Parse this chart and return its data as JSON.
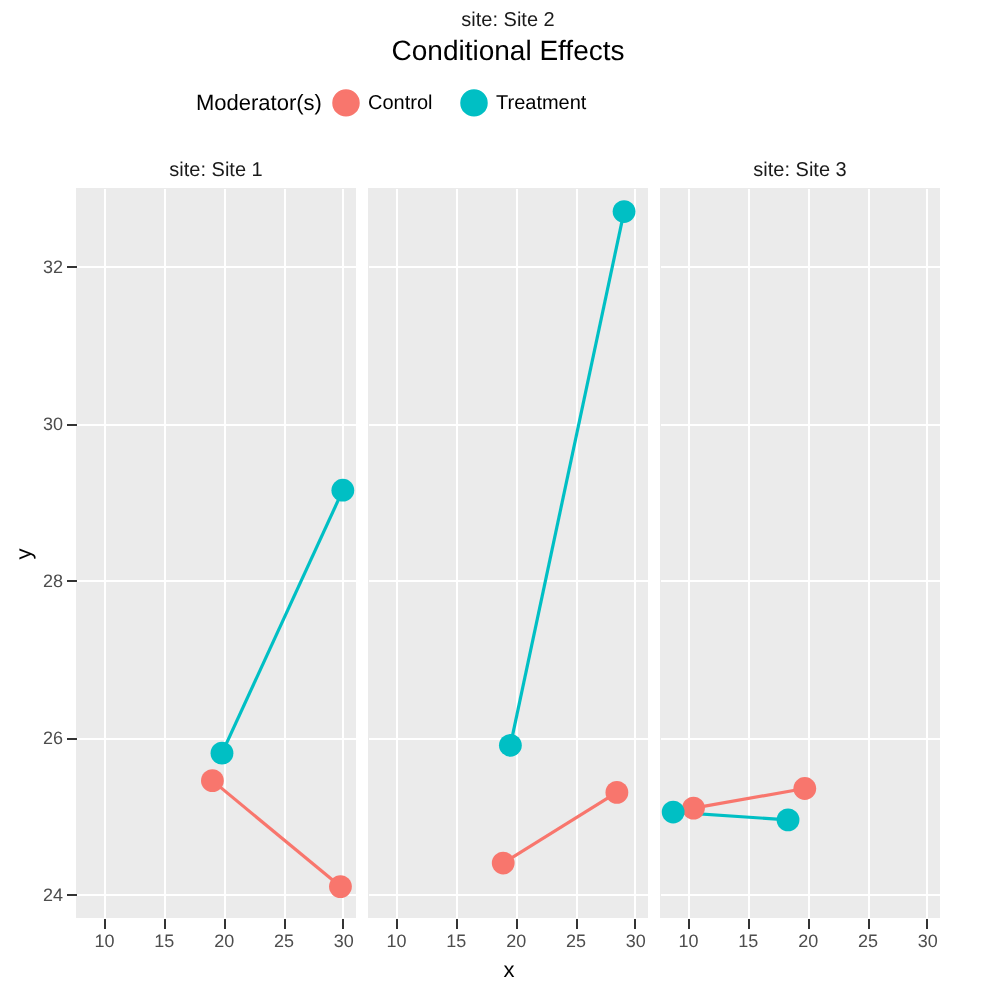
{
  "chart_data": [
    {
      "type": "line",
      "subtitle": "site: Site 1",
      "ylabel": "y",
      "legend_title": "Moderator(s)",
      "legend": "top",
      "grid": true,
      "marker": "circle",
      "line_style": "solid",
      "xlim": [
        7.7,
        31.1
      ],
      "xticks": [
        10,
        15,
        20,
        25,
        30
      ],
      "ylim": [
        23.7,
        33.0
      ],
      "yticks": [
        24,
        26,
        28,
        30,
        32
      ],
      "series": [
        {
          "name": "Control",
          "color": "#f8766d",
          "x": [
            19.1,
            29.8
          ],
          "values": [
            25.45,
            24.1
          ]
        },
        {
          "name": "Treatment",
          "color": "#00bfc4",
          "x": [
            19.9,
            30.0
          ],
          "values": [
            25.8,
            29.15
          ]
        }
      ]
    },
    {
      "type": "line",
      "title": "Conditional Effects",
      "subtitle": "site: Site 2",
      "xlabel": "x",
      "grid": true,
      "marker": "circle",
      "line_style": "solid",
      "tick_labels": "x",
      "xlim": [
        7.7,
        31.1
      ],
      "xticks": [
        10,
        15,
        20,
        25,
        30
      ],
      "ylim": [
        23.7,
        33.0
      ],
      "yticks": [
        24,
        26,
        28,
        30,
        32
      ],
      "series": [
        {
          "name": "Control",
          "color": "#f8766d",
          "x": [
            19.0,
            28.5
          ],
          "values": [
            24.4,
            25.3
          ]
        },
        {
          "name": "Treatment",
          "color": "#00bfc4",
          "x": [
            19.6,
            29.1
          ],
          "values": [
            25.9,
            32.7
          ]
        }
      ]
    },
    {
      "type": "line",
      "subtitle": "site: Site 3",
      "grid": true,
      "marker": "circle",
      "line_style": "solid",
      "tick_labels": "x",
      "xlim": [
        7.7,
        31.1
      ],
      "xticks": [
        10,
        15,
        20,
        25,
        30
      ],
      "ylim": [
        23.7,
        33.0
      ],
      "yticks": [
        24,
        26,
        28,
        30,
        32
      ],
      "series": [
        {
          "name": "Control",
          "color": "#f8766d",
          "x": [
            10.5,
            19.8
          ],
          "values": [
            25.1,
            25.35
          ]
        },
        {
          "name": "Treatment",
          "color": "#00bfc4",
          "x": [
            8.8,
            18.4
          ],
          "values": [
            25.05,
            24.95
          ]
        }
      ]
    }
  ]
}
